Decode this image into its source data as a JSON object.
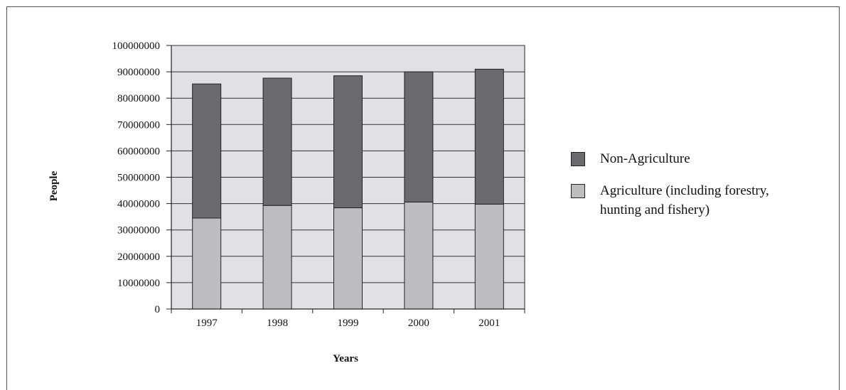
{
  "chart_data": {
    "type": "bar",
    "stacked": true,
    "categories": [
      "1997",
      "1998",
      "1999",
      "2000",
      "2001"
    ],
    "series": [
      {
        "name": "Agriculture (including forestry, hunting and fishery)",
        "values": [
          34500000,
          39300000,
          38400000,
          40600000,
          39800000
        ],
        "color": "#bdbdbf"
      },
      {
        "name": "Non-Agriculture",
        "values": [
          50900000,
          48300000,
          50100000,
          49400000,
          51200000
        ],
        "color": "#6b6b6e"
      }
    ],
    "ylabel": "People",
    "xlabel": "Years",
    "ylim": [
      0,
      100000000
    ],
    "yticks": [
      "0",
      "10000000",
      "20000000",
      "30000000",
      "40000000",
      "50000000",
      "60000000",
      "70000000",
      "80000000",
      "90000000",
      "100000000"
    ],
    "grid": true,
    "plot_background": "#e1e1e3",
    "legend": {
      "position": "right",
      "items": [
        {
          "label": "Non-Agriculture",
          "color": "#6b6b6e"
        },
        {
          "label_line1": "Agriculture (including forestry,",
          "label_line2": "hunting and fishery)",
          "color": "#bdbdbf"
        }
      ]
    }
  }
}
